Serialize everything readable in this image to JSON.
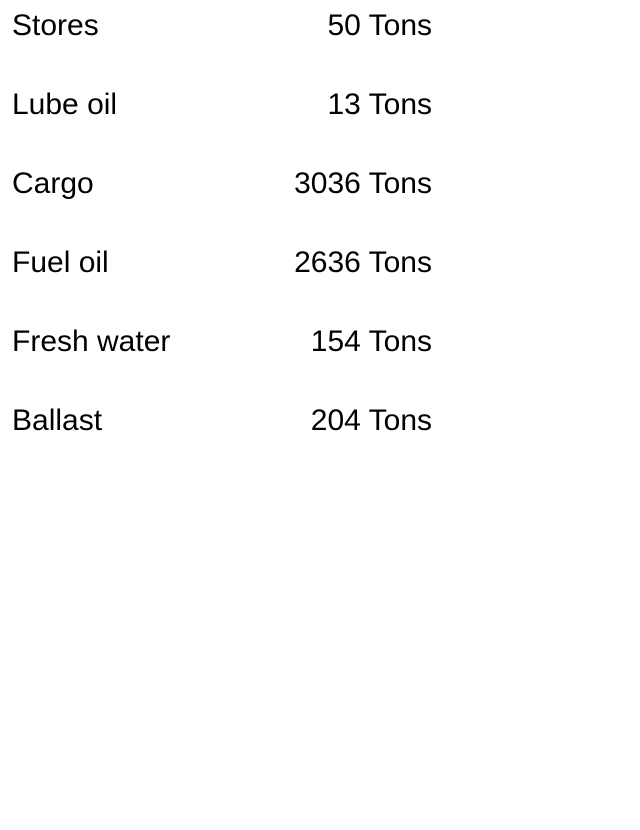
{
  "items": [
    {
      "label": "Stores",
      "value": "50 Tons"
    },
    {
      "label": "Lube oil",
      "value": "13 Tons"
    },
    {
      "label": "Cargo",
      "value": "3036 Tons"
    },
    {
      "label": "Fuel oil",
      "value": "2636 Tons"
    },
    {
      "label": "Fresh water",
      "value": "154 Tons"
    },
    {
      "label": "Ballast",
      "value": "204 Tons"
    }
  ]
}
